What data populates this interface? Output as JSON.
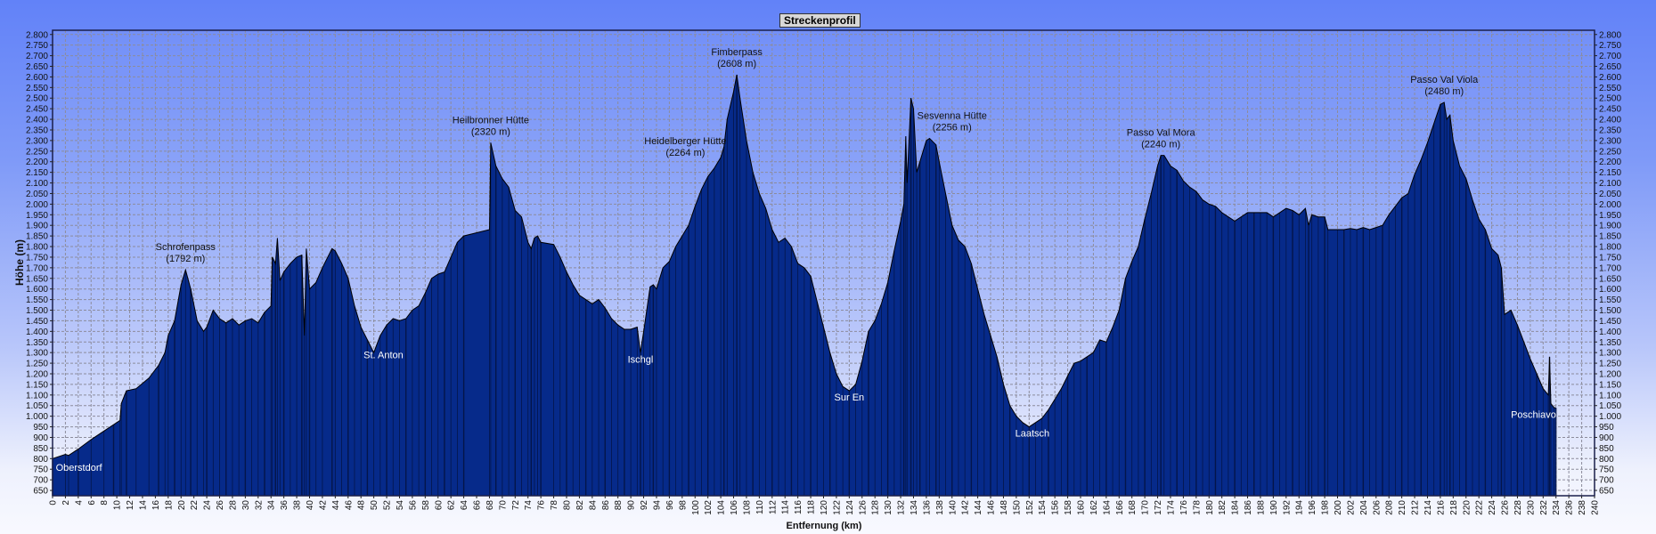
{
  "chart_data": {
    "type": "area",
    "title": "Streckenprofil",
    "xlabel": "Entfernung (km)",
    "ylabel": "Höhe (m)",
    "xlim": [
      0,
      240
    ],
    "ylim": [
      625,
      2820
    ],
    "x_tick_step": 2,
    "y_tick_step": 50,
    "y_tick_range": [
      650,
      2800
    ],
    "grid": true,
    "colors": {
      "fill": "#062a8a",
      "stripe": "#04123f",
      "outline": "#000000",
      "grid": "#8c8c9c"
    },
    "points": [
      [
        0,
        800
      ],
      [
        2,
        820
      ],
      [
        2.5,
        815
      ],
      [
        4,
        845
      ],
      [
        6,
        890
      ],
      [
        8,
        930
      ],
      [
        9.5,
        960
      ],
      [
        10.5,
        980
      ],
      [
        10.7,
        1060
      ],
      [
        11.5,
        1120
      ],
      [
        13,
        1130
      ],
      [
        15,
        1180
      ],
      [
        16.5,
        1240
      ],
      [
        17.5,
        1300
      ],
      [
        18,
        1380
      ],
      [
        19,
        1450
      ],
      [
        20,
        1620
      ],
      [
        20.7,
        1690
      ],
      [
        21.5,
        1600
      ],
      [
        22.5,
        1450
      ],
      [
        23.5,
        1400
      ],
      [
        24,
        1420
      ],
      [
        25,
        1500
      ],
      [
        26,
        1460
      ],
      [
        27,
        1440
      ],
      [
        28,
        1460
      ],
      [
        29,
        1430
      ],
      [
        30,
        1450
      ],
      [
        31,
        1460
      ],
      [
        32,
        1440
      ],
      [
        33,
        1490
      ],
      [
        34,
        1520
      ],
      [
        34.2,
        1750
      ],
      [
        34.7,
        1720
      ],
      [
        35,
        1840
      ],
      [
        35.4,
        1640
      ],
      [
        36,
        1680
      ],
      [
        37,
        1720
      ],
      [
        38,
        1750
      ],
      [
        38.8,
        1760
      ],
      [
        39.2,
        1380
      ],
      [
        39.5,
        1790
      ],
      [
        40,
        1600
      ],
      [
        41,
        1630
      ],
      [
        42,
        1700
      ],
      [
        43.5,
        1790
      ],
      [
        44,
        1780
      ],
      [
        45,
        1720
      ],
      [
        46,
        1650
      ],
      [
        47,
        1520
      ],
      [
        48,
        1420
      ],
      [
        49,
        1360
      ],
      [
        50,
        1300
      ],
      [
        51,
        1380
      ],
      [
        52,
        1430
      ],
      [
        53,
        1460
      ],
      [
        54,
        1450
      ],
      [
        55,
        1460
      ],
      [
        56,
        1500
      ],
      [
        57,
        1520
      ],
      [
        58,
        1580
      ],
      [
        59,
        1650
      ],
      [
        60,
        1670
      ],
      [
        61,
        1680
      ],
      [
        62,
        1750
      ],
      [
        63,
        1820
      ],
      [
        64,
        1850
      ],
      [
        68,
        1880
      ],
      [
        68.2,
        2290
      ],
      [
        69,
        2180
      ],
      [
        70,
        2120
      ],
      [
        71,
        2080
      ],
      [
        72,
        1970
      ],
      [
        73,
        1940
      ],
      [
        74,
        1820
      ],
      [
        74.5,
        1790
      ],
      [
        75,
        1840
      ],
      [
        75.5,
        1850
      ],
      [
        76,
        1820
      ],
      [
        78,
        1810
      ],
      [
        79,
        1750
      ],
      [
        80,
        1680
      ],
      [
        81,
        1620
      ],
      [
        82,
        1570
      ],
      [
        83,
        1550
      ],
      [
        84,
        1530
      ],
      [
        85,
        1550
      ],
      [
        86,
        1510
      ],
      [
        87,
        1460
      ],
      [
        88,
        1430
      ],
      [
        89,
        1410
      ],
      [
        90,
        1410
      ],
      [
        91,
        1420
      ],
      [
        91.5,
        1300
      ],
      [
        92,
        1400
      ],
      [
        93,
        1610
      ],
      [
        93.5,
        1620
      ],
      [
        94,
        1600
      ],
      [
        95,
        1700
      ],
      [
        96,
        1730
      ],
      [
        97,
        1800
      ],
      [
        98,
        1850
      ],
      [
        99,
        1900
      ],
      [
        100,
        1990
      ],
      [
        101,
        2070
      ],
      [
        102,
        2130
      ],
      [
        103,
        2170
      ],
      [
        104,
        2220
      ],
      [
        104.5,
        2270
      ],
      [
        105,
        2400
      ],
      [
        106,
        2530
      ],
      [
        106.5,
        2610
      ],
      [
        107,
        2500
      ],
      [
        108,
        2300
      ],
      [
        109,
        2150
      ],
      [
        110,
        2050
      ],
      [
        111,
        1980
      ],
      [
        112,
        1880
      ],
      [
        113,
        1820
      ],
      [
        114,
        1840
      ],
      [
        115,
        1800
      ],
      [
        116,
        1720
      ],
      [
        117,
        1700
      ],
      [
        118,
        1660
      ],
      [
        119,
        1540
      ],
      [
        120,
        1420
      ],
      [
        121,
        1300
      ],
      [
        122,
        1200
      ],
      [
        123,
        1140
      ],
      [
        124,
        1120
      ],
      [
        125,
        1150
      ],
      [
        126,
        1260
      ],
      [
        127,
        1400
      ],
      [
        128,
        1450
      ],
      [
        129,
        1530
      ],
      [
        130,
        1630
      ],
      [
        131,
        1780
      ],
      [
        132,
        1920
      ],
      [
        132.5,
        2000
      ],
      [
        132.8,
        2320
      ],
      [
        133,
        2100
      ],
      [
        133.6,
        2500
      ],
      [
        134,
        2450
      ],
      [
        134.5,
        2150
      ],
      [
        135,
        2200
      ],
      [
        136,
        2300
      ],
      [
        136.5,
        2310
      ],
      [
        137.5,
        2280
      ],
      [
        138,
        2200
      ],
      [
        139,
        2050
      ],
      [
        140,
        1900
      ],
      [
        141,
        1830
      ],
      [
        142,
        1800
      ],
      [
        143,
        1720
      ],
      [
        144,
        1600
      ],
      [
        145,
        1480
      ],
      [
        146,
        1380
      ],
      [
        147,
        1280
      ],
      [
        148,
        1150
      ],
      [
        149,
        1050
      ],
      [
        150,
        1000
      ],
      [
        151,
        970
      ],
      [
        152,
        950
      ],
      [
        153,
        970
      ],
      [
        154,
        990
      ],
      [
        155,
        1030
      ],
      [
        156,
        1080
      ],
      [
        157,
        1130
      ],
      [
        158,
        1190
      ],
      [
        159,
        1250
      ],
      [
        160,
        1260
      ],
      [
        161,
        1280
      ],
      [
        162,
        1300
      ],
      [
        163,
        1360
      ],
      [
        164,
        1350
      ],
      [
        165,
        1420
      ],
      [
        166,
        1500
      ],
      [
        167,
        1650
      ],
      [
        168,
        1730
      ],
      [
        169,
        1800
      ],
      [
        170,
        1930
      ],
      [
        171,
        2050
      ],
      [
        172,
        2180
      ],
      [
        172.5,
        2230
      ],
      [
        173,
        2230
      ],
      [
        174,
        2180
      ],
      [
        175,
        2160
      ],
      [
        176,
        2110
      ],
      [
        177,
        2080
      ],
      [
        178,
        2060
      ],
      [
        179,
        2020
      ],
      [
        180,
        2000
      ],
      [
        181,
        1990
      ],
      [
        182,
        1960
      ],
      [
        183,
        1940
      ],
      [
        184,
        1920
      ],
      [
        185,
        1940
      ],
      [
        186,
        1960
      ],
      [
        187,
        1960
      ],
      [
        188,
        1960
      ],
      [
        189,
        1960
      ],
      [
        190,
        1940
      ],
      [
        191,
        1960
      ],
      [
        192,
        1980
      ],
      [
        193,
        1970
      ],
      [
        194,
        1950
      ],
      [
        195,
        1980
      ],
      [
        195.5,
        1900
      ],
      [
        196,
        1950
      ],
      [
        197,
        1940
      ],
      [
        198,
        1940
      ],
      [
        198.5,
        1880
      ],
      [
        200,
        1880
      ],
      [
        201,
        1880
      ],
      [
        202,
        1885
      ],
      [
        203,
        1880
      ],
      [
        204,
        1890
      ],
      [
        205,
        1880
      ],
      [
        206,
        1890
      ],
      [
        207,
        1900
      ],
      [
        208,
        1950
      ],
      [
        209,
        1990
      ],
      [
        210,
        2030
      ],
      [
        211,
        2050
      ],
      [
        212,
        2140
      ],
      [
        213,
        2210
      ],
      [
        214,
        2290
      ],
      [
        215,
        2380
      ],
      [
        216,
        2470
      ],
      [
        216.6,
        2480
      ],
      [
        217,
        2400
      ],
      [
        217.5,
        2420
      ],
      [
        218,
        2300
      ],
      [
        219,
        2180
      ],
      [
        220,
        2120
      ],
      [
        221,
        2020
      ],
      [
        222,
        1930
      ],
      [
        223,
        1880
      ],
      [
        224,
        1790
      ],
      [
        225,
        1760
      ],
      [
        225.5,
        1700
      ],
      [
        226,
        1480
      ],
      [
        227,
        1500
      ],
      [
        228,
        1430
      ],
      [
        229,
        1350
      ],
      [
        230,
        1270
      ],
      [
        231,
        1200
      ],
      [
        232,
        1130
      ],
      [
        232.8,
        1100
      ],
      [
        233,
        1280
      ],
      [
        233.2,
        1060
      ],
      [
        233.7,
        1040
      ],
      [
        234,
        1040
      ]
    ],
    "annotations": [
      {
        "kind": "place",
        "name": "Oberstdorf",
        "km": 0.5,
        "elev": 760
      },
      {
        "kind": "peak",
        "name": "Schrofenpass",
        "elevation_label": "(1792 m)",
        "km": 20.7,
        "elev": 1690
      },
      {
        "kind": "place",
        "name": "St. Anton",
        "km": 51.5,
        "elev": 1290
      },
      {
        "kind": "peak",
        "name": "Heilbronner Hütte",
        "elevation_label": "(2320 m)",
        "km": 68.2,
        "elev": 2290
      },
      {
        "kind": "place",
        "name": "Ischgl",
        "km": 91.5,
        "elev": 1270
      },
      {
        "kind": "peak",
        "name": "Heidelberger Hütte",
        "elevation_label": "(2264 m)",
        "km": 98.5,
        "elev": 2190
      },
      {
        "kind": "peak",
        "name": "Fimberpass",
        "elevation_label": "(2608 m)",
        "km": 106.5,
        "elev": 2610
      },
      {
        "kind": "place",
        "name": "Sur En",
        "km": 124,
        "elev": 1090
      },
      {
        "kind": "peak",
        "name": "Sesvenna Hütte",
        "elevation_label": "(2256 m)",
        "km": 140,
        "elev": 2310
      },
      {
        "kind": "place",
        "name": "Laatsch",
        "km": 152.5,
        "elev": 920
      },
      {
        "kind": "peak",
        "name": "Passo Val Mora",
        "elevation_label": "(2240 m)",
        "km": 172.5,
        "elev": 2230
      },
      {
        "kind": "peak",
        "name": "Passo Val Viola",
        "elevation_label": "(2480 m)",
        "km": 216.6,
        "elev": 2480
      },
      {
        "kind": "place",
        "name": "Poschiavo",
        "km": 230.5,
        "elev": 1010
      }
    ]
  }
}
